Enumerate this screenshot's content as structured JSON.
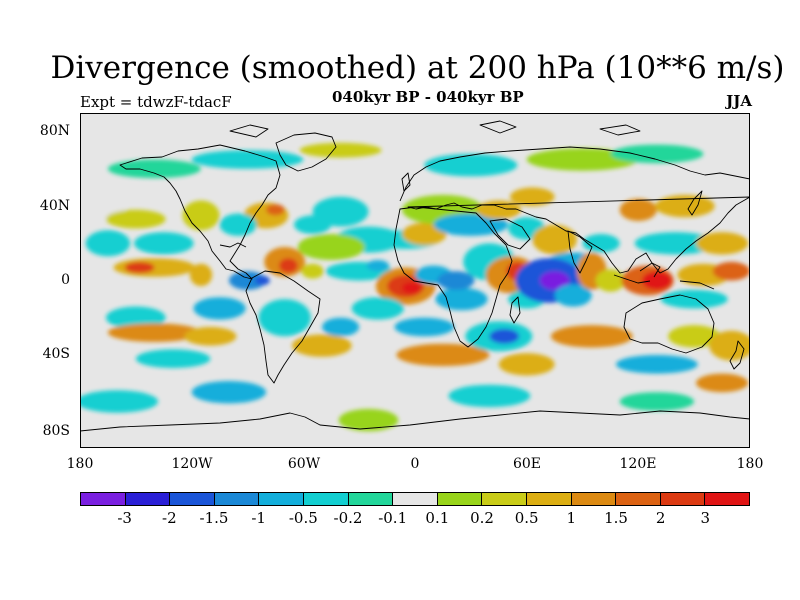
{
  "title": "Divergence (smoothed) at 200 hPa (10**6 m/s)",
  "experiment": "Expt = tdwzF-tdacF",
  "period": "040kyr BP - 040kyr BP",
  "season": "JJA",
  "map": {
    "background_color": "#e6e6e6",
    "lat_labels": [
      "80N",
      "40N",
      "0",
      "40S",
      "80S"
    ],
    "lon_labels": [
      "180",
      "120W",
      "60W",
      "0",
      "60E",
      "120E",
      "180"
    ]
  },
  "colorbar": {
    "colors": [
      "#7a1fe0",
      "#2a1fd6",
      "#1a55d8",
      "#1a88d6",
      "#12aedb",
      "#12cfd1",
      "#22d69a",
      "#e6e6e6",
      "#98d41a",
      "#c9cc18",
      "#dcae12",
      "#dc8a12",
      "#dc6212",
      "#dc3a12",
      "#e01414"
    ],
    "labels": [
      "-3",
      "-2",
      "-1.5",
      "-1",
      "-0.5",
      "-0.2",
      "-0.1",
      "0.1",
      "0.2",
      "0.5",
      "1",
      "1.5",
      "2",
      "3"
    ]
  },
  "map_data": {
    "lat_range": [
      -90,
      90
    ],
    "lon_range": [
      -180,
      180
    ],
    "blobs": [
      {
        "lon": -170,
        "lat": 38,
        "rx": 14,
        "ry": 5,
        "level": 7
      },
      {
        "lon": -150,
        "lat": 33,
        "rx": 16,
        "ry": 5,
        "level": 9
      },
      {
        "lon": -115,
        "lat": 35,
        "rx": 10,
        "ry": 8,
        "level": 9
      },
      {
        "lon": -165,
        "lat": 20,
        "rx": 12,
        "ry": 7,
        "level": 5
      },
      {
        "lon": -135,
        "lat": 20,
        "rx": 16,
        "ry": 6,
        "level": 5
      },
      {
        "lon": -140,
        "lat": 7,
        "rx": 22,
        "ry": 5,
        "level": 10
      },
      {
        "lon": -148,
        "lat": 7,
        "rx": 8,
        "ry": 3,
        "level": 13
      },
      {
        "lon": -115,
        "lat": 3,
        "rx": 6,
        "ry": 6,
        "level": 10
      },
      {
        "lon": -90,
        "lat": 0,
        "rx": 10,
        "ry": 5,
        "level": 3
      },
      {
        "lon": -82,
        "lat": 0,
        "rx": 4,
        "ry": 2.5,
        "level": 2
      },
      {
        "lon": -70,
        "lat": 10,
        "rx": 11,
        "ry": 8,
        "level": 11
      },
      {
        "lon": -68,
        "lat": 8,
        "rx": 5,
        "ry": 4,
        "level": 13
      },
      {
        "lon": -55,
        "lat": 5,
        "rx": 6,
        "ry": 4,
        "level": 9
      },
      {
        "lon": -80,
        "lat": 35,
        "rx": 12,
        "ry": 7,
        "level": 10
      },
      {
        "lon": -75,
        "lat": 38,
        "rx": 5,
        "ry": 3,
        "level": 12
      },
      {
        "lon": -95,
        "lat": 30,
        "rx": 10,
        "ry": 6,
        "level": 5
      },
      {
        "lon": -55,
        "lat": 30,
        "rx": 10,
        "ry": 5,
        "level": 5
      },
      {
        "lon": -40,
        "lat": 37,
        "rx": 15,
        "ry": 8,
        "level": 5
      },
      {
        "lon": -25,
        "lat": 22,
        "rx": 18,
        "ry": 7,
        "level": 5
      },
      {
        "lon": -45,
        "lat": 18,
        "rx": 18,
        "ry": 7,
        "level": 8
      },
      {
        "lon": -30,
        "lat": 5,
        "rx": 18,
        "ry": 5,
        "level": 5
      },
      {
        "lon": -20,
        "lat": 8,
        "rx": 6,
        "ry": 3,
        "level": 4
      },
      {
        "lon": -5,
        "lat": 22,
        "rx": 18,
        "ry": 5,
        "level": 5
      },
      {
        "lon": 5,
        "lat": 25,
        "rx": 12,
        "ry": 6,
        "level": 10
      },
      {
        "lon": 15,
        "lat": 38,
        "rx": 22,
        "ry": 8,
        "level": 8
      },
      {
        "lon": 30,
        "lat": 30,
        "rx": 20,
        "ry": 6,
        "level": 4
      },
      {
        "lon": 40,
        "lat": 10,
        "rx": 14,
        "ry": 10,
        "level": 5
      },
      {
        "lon": 45,
        "lat": 38,
        "rx": 12,
        "ry": 5,
        "level": 10
      },
      {
        "lon": 63,
        "lat": 45,
        "rx": 12,
        "ry": 5,
        "level": 10
      },
      {
        "lon": 60,
        "lat": 28,
        "rx": 10,
        "ry": 6,
        "level": 5
      },
      {
        "lon": 75,
        "lat": 22,
        "rx": 12,
        "ry": 8,
        "level": 10
      },
      {
        "lon": 85,
        "lat": 10,
        "rx": 14,
        "ry": 5,
        "level": 4
      },
      {
        "lon": 100,
        "lat": 20,
        "rx": 10,
        "ry": 5,
        "level": 5
      },
      {
        "lon": 120,
        "lat": 38,
        "rx": 10,
        "ry": 6,
        "level": 11
      },
      {
        "lon": 145,
        "lat": 40,
        "rx": 16,
        "ry": 6,
        "level": 10
      },
      {
        "lon": 140,
        "lat": 20,
        "rx": 22,
        "ry": 6,
        "level": 5
      },
      {
        "lon": 165,
        "lat": 20,
        "rx": 14,
        "ry": 6,
        "level": 10
      },
      {
        "lon": 90,
        "lat": 65,
        "rx": 30,
        "ry": 6,
        "level": 8
      },
      {
        "lon": 30,
        "lat": 62,
        "rx": 25,
        "ry": 6,
        "level": 5
      },
      {
        "lon": -140,
        "lat": 60,
        "rx": 25,
        "ry": 5,
        "level": 6
      },
      {
        "lon": -90,
        "lat": 65,
        "rx": 30,
        "ry": 5,
        "level": 5
      },
      {
        "lon": -40,
        "lat": 70,
        "rx": 22,
        "ry": 4,
        "level": 9
      },
      {
        "lon": 130,
        "lat": 68,
        "rx": 25,
        "ry": 5,
        "level": 6
      },
      {
        "lon": -5,
        "lat": -3,
        "rx": 16,
        "ry": 10,
        "level": 11
      },
      {
        "lon": -5,
        "lat": -3,
        "rx": 10,
        "ry": 6,
        "level": 13
      },
      {
        "lon": -2,
        "lat": -4,
        "rx": 5,
        "ry": 3,
        "level": 14
      },
      {
        "lon": 10,
        "lat": 3,
        "rx": 10,
        "ry": 5,
        "level": 4
      },
      {
        "lon": 25,
        "lat": -10,
        "rx": 14,
        "ry": 6,
        "level": 4
      },
      {
        "lon": 22,
        "lat": 0,
        "rx": 10,
        "ry": 5,
        "level": 3
      },
      {
        "lon": 52,
        "lat": 3,
        "rx": 14,
        "ry": 10,
        "level": 11
      },
      {
        "lon": 55,
        "lat": 5,
        "rx": 6,
        "ry": 5,
        "level": 13
      },
      {
        "lon": 60,
        "lat": -10,
        "rx": 10,
        "ry": 5,
        "level": 5
      },
      {
        "lon": 72,
        "lat": 0,
        "rx": 18,
        "ry": 12,
        "level": 2
      },
      {
        "lon": 75,
        "lat": 0,
        "rx": 8,
        "ry": 5,
        "level": 0
      },
      {
        "lon": 85,
        "lat": -8,
        "rx": 10,
        "ry": 6,
        "level": 4
      },
      {
        "lon": 95,
        "lat": 5,
        "rx": 8,
        "ry": 10,
        "level": 11
      },
      {
        "lon": 105,
        "lat": 0,
        "rx": 8,
        "ry": 6,
        "level": 9
      },
      {
        "lon": 125,
        "lat": 0,
        "rx": 14,
        "ry": 8,
        "level": 12
      },
      {
        "lon": 130,
        "lat": 0,
        "rx": 8,
        "ry": 5,
        "level": 14
      },
      {
        "lon": 155,
        "lat": 3,
        "rx": 14,
        "ry": 6,
        "level": 10
      },
      {
        "lon": 150,
        "lat": -10,
        "rx": 18,
        "ry": 5,
        "level": 5
      },
      {
        "lon": 170,
        "lat": 5,
        "rx": 10,
        "ry": 5,
        "level": 12
      },
      {
        "lon": -150,
        "lat": -20,
        "rx": 16,
        "ry": 6,
        "level": 5
      },
      {
        "lon": -140,
        "lat": -28,
        "rx": 25,
        "ry": 5,
        "level": 11
      },
      {
        "lon": -110,
        "lat": -30,
        "rx": 14,
        "ry": 5,
        "level": 10
      },
      {
        "lon": -130,
        "lat": -42,
        "rx": 20,
        "ry": 5,
        "level": 5
      },
      {
        "lon": -105,
        "lat": -15,
        "rx": 14,
        "ry": 6,
        "level": 4
      },
      {
        "lon": -70,
        "lat": -20,
        "rx": 14,
        "ry": 10,
        "level": 5
      },
      {
        "lon": -50,
        "lat": -35,
        "rx": 16,
        "ry": 6,
        "level": 10
      },
      {
        "lon": -40,
        "lat": -25,
        "rx": 10,
        "ry": 5,
        "level": 4
      },
      {
        "lon": -20,
        "lat": -15,
        "rx": 14,
        "ry": 6,
        "level": 5
      },
      {
        "lon": 5,
        "lat": -25,
        "rx": 16,
        "ry": 5,
        "level": 4
      },
      {
        "lon": 15,
        "lat": -40,
        "rx": 25,
        "ry": 6,
        "level": 11
      },
      {
        "lon": 45,
        "lat": -30,
        "rx": 18,
        "ry": 8,
        "level": 5
      },
      {
        "lon": 48,
        "lat": -30,
        "rx": 8,
        "ry": 4,
        "level": 2
      },
      {
        "lon": 60,
        "lat": -45,
        "rx": 15,
        "ry": 6,
        "level": 10
      },
      {
        "lon": 95,
        "lat": -30,
        "rx": 22,
        "ry": 6,
        "level": 11
      },
      {
        "lon": 130,
        "lat": -45,
        "rx": 22,
        "ry": 5,
        "level": 4
      },
      {
        "lon": 150,
        "lat": -30,
        "rx": 14,
        "ry": 6,
        "level": 9
      },
      {
        "lon": 170,
        "lat": -35,
        "rx": 12,
        "ry": 8,
        "level": 10
      },
      {
        "lon": -160,
        "lat": -65,
        "rx": 22,
        "ry": 6,
        "level": 5
      },
      {
        "lon": -100,
        "lat": -60,
        "rx": 20,
        "ry": 6,
        "level": 4
      },
      {
        "lon": -25,
        "lat": -75,
        "rx": 16,
        "ry": 6,
        "level": 8
      },
      {
        "lon": 40,
        "lat": -62,
        "rx": 22,
        "ry": 6,
        "level": 5
      },
      {
        "lon": 130,
        "lat": -65,
        "rx": 20,
        "ry": 5,
        "level": 6
      },
      {
        "lon": 165,
        "lat": -55,
        "rx": 14,
        "ry": 5,
        "level": 11
      }
    ]
  }
}
